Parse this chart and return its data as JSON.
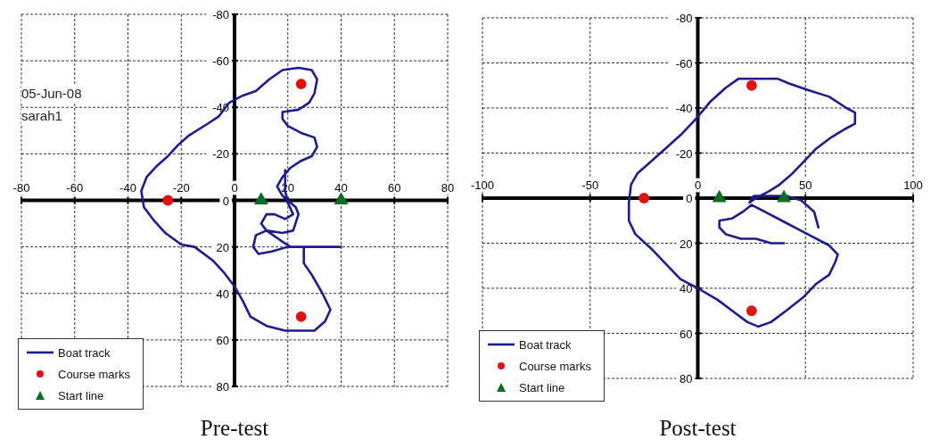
{
  "chart_data": [
    {
      "type": "line",
      "title": "Pre-test",
      "annotations": [
        "05-Jun-08",
        "sarah1"
      ],
      "xlim": [
        -80,
        80
      ],
      "xticks": [
        -80,
        -60,
        -40,
        -20,
        0,
        20,
        40,
        60,
        80
      ],
      "ylim": [
        80,
        -80
      ],
      "yticks": [
        -80,
        -60,
        -40,
        -20,
        0,
        20,
        40,
        60,
        80
      ],
      "grid": true,
      "legend": "bottom left",
      "series": [
        {
          "name": "Boat track",
          "color": "#1c1c8e",
          "marker": "none",
          "x": [
            40,
            25,
            20,
            14,
            9,
            7,
            8,
            12,
            17,
            21,
            26,
            26,
            29,
            33,
            36,
            34,
            30,
            25,
            19,
            12,
            6,
            3,
            0,
            -4,
            -8,
            -15,
            -20,
            -26,
            -30,
            -34,
            -35,
            -33,
            -29,
            -25,
            -21,
            -17,
            -10,
            -6,
            -2,
            3,
            8,
            13,
            18,
            24,
            29,
            31,
            30,
            28,
            24,
            18,
            18,
            20,
            25,
            30,
            31,
            29,
            25,
            21,
            18,
            16,
            18,
            20,
            23,
            24,
            22,
            18,
            12,
            10,
            12,
            15,
            19,
            22,
            20,
            19,
            19
          ],
          "values": [
            20,
            20,
            20,
            22,
            23,
            20,
            15,
            13,
            17,
            20,
            20,
            27,
            32,
            40,
            47,
            52,
            56,
            56,
            56,
            54,
            50,
            43,
            37,
            31,
            26,
            20,
            19,
            14,
            9,
            3,
            -4,
            -10,
            -15,
            -19,
            -24,
            -28,
            -33,
            -36,
            -42,
            -45,
            -47,
            -52,
            -56,
            -57,
            -56,
            -52,
            -46,
            -42,
            -39,
            -38,
            -35,
            -32,
            -29,
            -27,
            -23,
            -19,
            -17,
            -14,
            -10,
            -6,
            -2,
            0,
            3,
            6,
            13,
            14,
            13,
            10,
            6,
            6,
            8,
            6,
            1,
            -4,
            -13
          ]
        },
        {
          "name": "Course marks",
          "type": "scatter",
          "color": "#e31212",
          "marker": "circle",
          "x": [
            -25,
            25,
            25
          ],
          "values": [
            0,
            -50,
            50
          ]
        },
        {
          "name": "Start line",
          "type": "scatter",
          "color": "#0b6e23",
          "marker": "triangle",
          "x": [
            10,
            40
          ],
          "values": [
            0,
            0
          ]
        }
      ]
    },
    {
      "type": "line",
      "title": "Post-test",
      "xlim": [
        -100,
        100
      ],
      "xticks": [
        -100,
        -50,
        0,
        50,
        100
      ],
      "ylim": [
        80,
        -80
      ],
      "yticks": [
        -80,
        -60,
        -40,
        -20,
        0,
        20,
        40,
        60,
        80
      ],
      "grid": true,
      "legend": "bottom left",
      "series": [
        {
          "name": "Boat track",
          "color": "#1c1c8e",
          "marker": "none",
          "x": [
            40,
            34,
            27,
            20,
            13,
            10,
            10,
            16,
            21,
            25,
            31,
            41,
            51,
            61,
            65,
            64,
            61,
            55,
            49,
            41,
            34,
            28,
            23,
            16,
            9,
            0,
            -8,
            -13,
            -21,
            -29,
            -32,
            -32,
            -31,
            -28,
            -22,
            -15,
            -8,
            -1,
            6,
            13,
            19,
            37,
            42,
            51,
            61,
            69,
            73,
            73,
            69,
            62,
            55,
            49,
            44,
            38,
            33,
            27,
            24,
            26,
            31,
            41,
            48,
            54,
            56
          ],
          "values": [
            20,
            20,
            18,
            18,
            16,
            13,
            10,
            9,
            6,
            3,
            6,
            11,
            16,
            21,
            25,
            28,
            34,
            38,
            44,
            50,
            55,
            57,
            55,
            50,
            45,
            40,
            36,
            31,
            23,
            16,
            10,
            2,
            -6,
            -11,
            -16,
            -22,
            -28,
            -35,
            -43,
            -49,
            -53,
            -53,
            -51,
            -48,
            -45,
            -40,
            -38,
            -33,
            -31,
            -27,
            -22,
            -16,
            -11,
            -6,
            -3,
            0,
            2,
            -1,
            -1,
            -1,
            1,
            6,
            13
          ]
        },
        {
          "name": "Course marks",
          "type": "scatter",
          "color": "#e31212",
          "marker": "circle",
          "x": [
            -25,
            25,
            25
          ],
          "values": [
            0,
            -50,
            50
          ]
        },
        {
          "name": "Start line",
          "type": "scatter",
          "color": "#0b6e23",
          "marker": "triangle",
          "x": [
            10,
            40
          ],
          "values": [
            0,
            0
          ]
        }
      ]
    }
  ]
}
